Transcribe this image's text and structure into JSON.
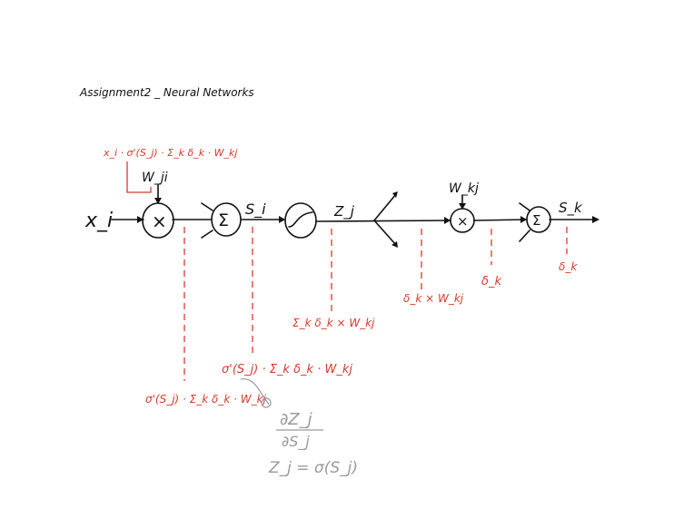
{
  "title": "Assignment2 _ Neural Networks",
  "input_label": "x_i",
  "weight_ji_label": "W_ji",
  "weight_kj_label": "W_kj",
  "sum_symbol": "Σ",
  "mult_symbol": "×",
  "s_i_label": "S_i",
  "z_j_label": "Z_j",
  "s_k_label": "S_k",
  "grad_weight_ji": "x_i · σ'(S_j) · Σ_k δ_k · W_kj",
  "grad_after_mult": "σ'(S_j) · Σ_k δ_k · W_kj",
  "grad_at_s": "σ'(S_j) · Σ_k δ_k · W_kj",
  "grad_at_z": "Σ_k δ_k × W_kj",
  "grad_after_split": "δ_k × W_kj",
  "grad_after_mult2": "δ_k",
  "grad_output": "δ_k",
  "derivative_numerator": "∂Z_j",
  "derivative_denominator": "∂S_j",
  "activation_eq": "Z_j = σ(S_j)"
}
